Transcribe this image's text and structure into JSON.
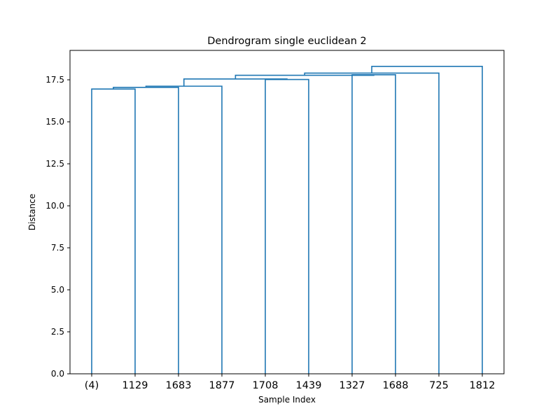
{
  "chart_data": {
    "type": "dendrogram",
    "title": "Dendrogram single euclidean 2",
    "xlabel": "Sample Index",
    "ylabel": "Distance",
    "ylim": [
      0,
      19.25
    ],
    "y_ticks": [
      "0.0",
      "2.5",
      "5.0",
      "7.5",
      "10.0",
      "12.5",
      "15.0",
      "17.5"
    ],
    "y_tick_values": [
      0,
      2.5,
      5.0,
      7.5,
      10.0,
      12.5,
      15.0,
      17.5
    ],
    "leaves": [
      "(4)",
      "1129",
      "1683",
      "1877",
      "1708",
      "1439",
      "1327",
      "1688",
      "725",
      "1812"
    ],
    "link_color": "#1f77b4",
    "merges": [
      {
        "left": "(4)",
        "right": "1129",
        "distance": 16.95
      },
      {
        "left": "cluster-1",
        "right": "1683",
        "distance": 17.05
      },
      {
        "left": "cluster-2",
        "right": "1877",
        "distance": 17.12
      },
      {
        "left": "1708",
        "right": "1439",
        "distance": 17.52
      },
      {
        "left": "cluster-3",
        "right": "cluster-4",
        "distance": 17.55
      },
      {
        "left": "1327",
        "right": "1688",
        "distance": 17.8
      },
      {
        "left": "cluster-5",
        "right": "cluster-6",
        "distance": 17.77
      },
      {
        "left": "cluster-7",
        "right": "725",
        "distance": 17.9
      },
      {
        "left": "cluster-8",
        "right": "1812",
        "distance": 18.3
      }
    ],
    "grid": false,
    "legend": "none"
  }
}
